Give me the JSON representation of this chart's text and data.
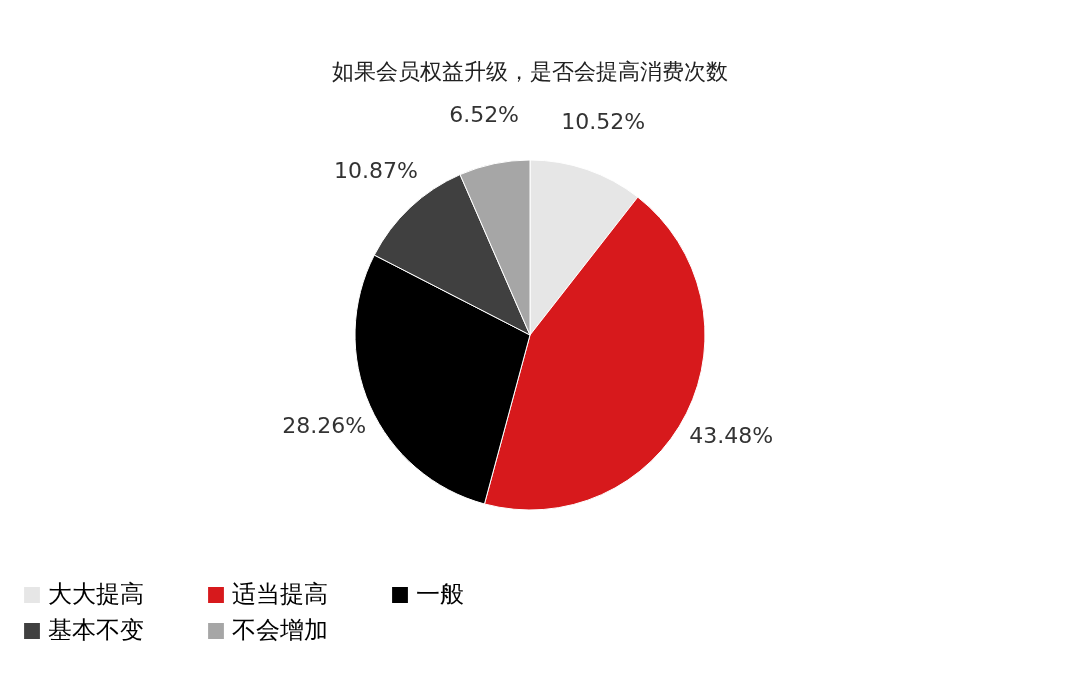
{
  "chart_data": {
    "type": "pie",
    "title": "如果会员权益升级，是否会提高消费次数",
    "categories": [
      "大大提高",
      "适当提高",
      "一般",
      "基本不变",
      "不会增加"
    ],
    "values": [
      10.52,
      43.48,
      28.26,
      10.87,
      6.52
    ],
    "colors": [
      "#e6e6e6",
      "#d7191c",
      "#000000",
      "#404040",
      "#a6a6a6"
    ],
    "value_labels": [
      "10.52%",
      "43.48%",
      "28.26%",
      "10.87%",
      "6.52%"
    ],
    "legend": "bottom"
  }
}
